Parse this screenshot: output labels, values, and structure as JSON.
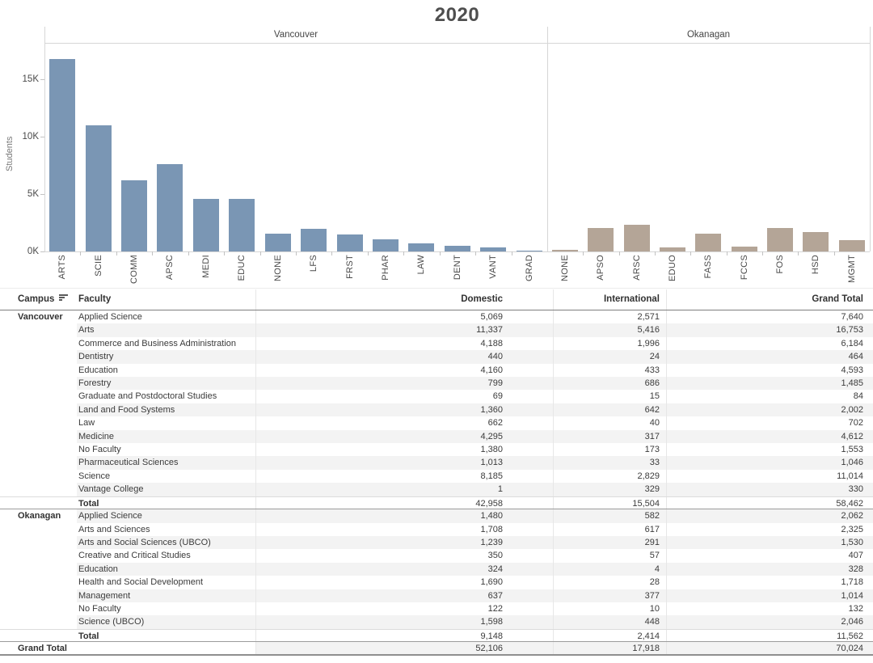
{
  "title": "2020",
  "chart_data": {
    "type": "bar",
    "title": "2020",
    "xlabel": "",
    "ylabel": "Students",
    "ylim": [
      0,
      17950
    ],
    "grid": false,
    "legend_position": "none",
    "ytick_values": [
      0,
      5000,
      10000,
      15000
    ],
    "ytick_labels": [
      "0K",
      "5K",
      "10K",
      "15K"
    ],
    "panels": [
      {
        "name": "Vancouver",
        "color": "#7a96b4",
        "categories": [
          "ARTS",
          "SCIE",
          "COMM",
          "APSC",
          "MEDI",
          "EDUC",
          "NONE",
          "LFS",
          "FRST",
          "PHAR",
          "LAW",
          "DENT",
          "VANT",
          "GRAD"
        ],
        "values": [
          16753,
          11014,
          6184,
          7640,
          4612,
          4593,
          1553,
          2002,
          1485,
          1046,
          702,
          464,
          330,
          84
        ]
      },
      {
        "name": "Okanagan",
        "color": "#b4a597",
        "categories": [
          "NONE",
          "APSO",
          "ARSC",
          "EDUO",
          "FASS",
          "FCCS",
          "FOS",
          "HSD",
          "MGMT"
        ],
        "values": [
          132,
          2062,
          2325,
          328,
          1530,
          407,
          2046,
          1718,
          1014
        ]
      }
    ]
  },
  "table": {
    "columns": [
      "Campus",
      "Faculty",
      "Domestic",
      "International",
      "Grand Total"
    ],
    "sort_icon": "sort-descending",
    "sections": [
      {
        "campus": "Vancouver",
        "rows": [
          [
            "Applied Science",
            "5,069",
            "2,571",
            "7,640"
          ],
          [
            "Arts",
            "11,337",
            "5,416",
            "16,753"
          ],
          [
            "Commerce and Business Administration",
            "4,188",
            "1,996",
            "6,184"
          ],
          [
            "Dentistry",
            "440",
            "24",
            "464"
          ],
          [
            "Education",
            "4,160",
            "433",
            "4,593"
          ],
          [
            "Forestry",
            "799",
            "686",
            "1,485"
          ],
          [
            "Graduate and Postdoctoral Studies",
            "69",
            "15",
            "84"
          ],
          [
            "Land and Food Systems",
            "1,360",
            "642",
            "2,002"
          ],
          [
            "Law",
            "662",
            "40",
            "702"
          ],
          [
            "Medicine",
            "4,295",
            "317",
            "4,612"
          ],
          [
            "No Faculty",
            "1,380",
            "173",
            "1,553"
          ],
          [
            "Pharmaceutical Sciences",
            "1,013",
            "33",
            "1,046"
          ],
          [
            "Science",
            "8,185",
            "2,829",
            "11,014"
          ],
          [
            "Vantage College",
            "1",
            "329",
            "330"
          ]
        ],
        "total": [
          "Total",
          "42,958",
          "15,504",
          "58,462"
        ]
      },
      {
        "campus": "Okanagan",
        "rows": [
          [
            "Applied Science",
            "1,480",
            "582",
            "2,062"
          ],
          [
            "Arts and Sciences",
            "1,708",
            "617",
            "2,325"
          ],
          [
            "Arts and Social Sciences (UBCO)",
            "1,239",
            "291",
            "1,530"
          ],
          [
            "Creative and Critical Studies",
            "350",
            "57",
            "407"
          ],
          [
            "Education",
            "324",
            "4",
            "328"
          ],
          [
            "Health and Social Development",
            "1,690",
            "28",
            "1,718"
          ],
          [
            "Management",
            "637",
            "377",
            "1,014"
          ],
          [
            "No Faculty",
            "122",
            "10",
            "132"
          ],
          [
            "Science (UBCO)",
            "1,598",
            "448",
            "2,046"
          ]
        ],
        "total": [
          "Total",
          "9,148",
          "2,414",
          "11,562"
        ]
      }
    ],
    "grand_total": [
      "Grand Total",
      "52,106",
      "17,918",
      "70,024"
    ]
  }
}
